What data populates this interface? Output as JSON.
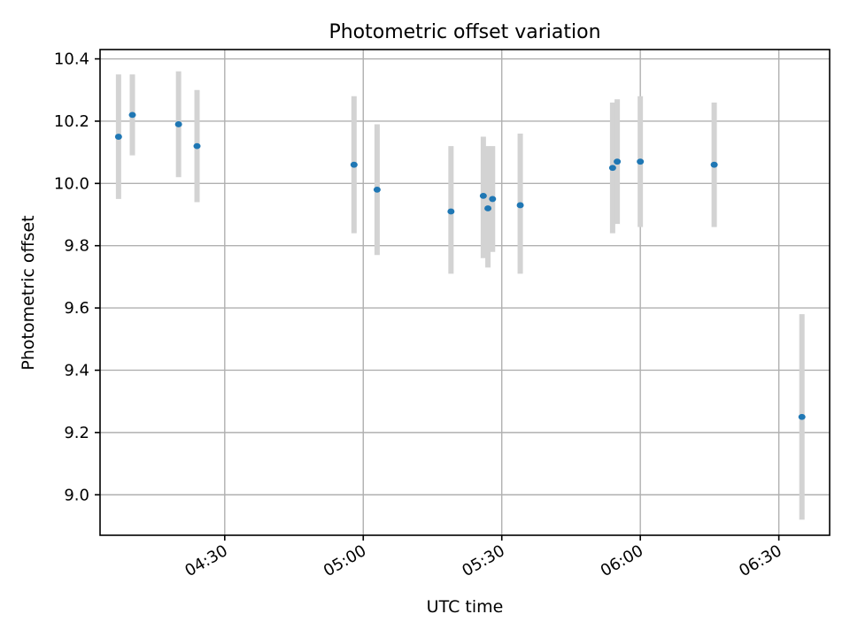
{
  "chart_data": {
    "type": "scatter",
    "title": "Photometric offset variation",
    "xlabel": "UTC time",
    "ylabel": "Photometric offset",
    "x_tick_labels": [
      "04:30",
      "05:00",
      "05:30",
      "06:00",
      "06:30"
    ],
    "x_tick_minutes": [
      270,
      300,
      330,
      360,
      390
    ],
    "y_ticks": [
      "9.0",
      "9.2",
      "9.4",
      "9.6",
      "9.8",
      "10.0",
      "10.2",
      "10.4"
    ],
    "x_range": [
      "04:03",
      "06:41"
    ],
    "ylim": [
      8.87,
      10.43
    ],
    "grid": true,
    "point_color": "#1f77b4",
    "errorbar_color": "#d3d3d3",
    "points": [
      {
        "x": "04:07",
        "y": 10.15,
        "ylow": 9.95,
        "yhigh": 10.35
      },
      {
        "x": "04:10",
        "y": 10.22,
        "ylow": 10.09,
        "yhigh": 10.35
      },
      {
        "x": "04:20",
        "y": 10.19,
        "ylow": 10.02,
        "yhigh": 10.36
      },
      {
        "x": "04:24",
        "y": 10.12,
        "ylow": 9.94,
        "yhigh": 10.3
      },
      {
        "x": "04:58",
        "y": 10.06,
        "ylow": 9.84,
        "yhigh": 10.28
      },
      {
        "x": "05:03",
        "y": 9.98,
        "ylow": 9.77,
        "yhigh": 10.19
      },
      {
        "x": "05:19",
        "y": 9.91,
        "ylow": 9.71,
        "yhigh": 10.12
      },
      {
        "x": "05:26",
        "y": 9.96,
        "ylow": 9.76,
        "yhigh": 10.15
      },
      {
        "x": "05:27",
        "y": 9.92,
        "ylow": 9.73,
        "yhigh": 10.12
      },
      {
        "x": "05:28",
        "y": 9.95,
        "ylow": 9.78,
        "yhigh": 10.12
      },
      {
        "x": "05:34",
        "y": 9.93,
        "ylow": 9.71,
        "yhigh": 10.16
      },
      {
        "x": "05:54",
        "y": 10.05,
        "ylow": 9.84,
        "yhigh": 10.26
      },
      {
        "x": "05:55",
        "y": 10.07,
        "ylow": 9.87,
        "yhigh": 10.27
      },
      {
        "x": "06:00",
        "y": 10.07,
        "ylow": 9.86,
        "yhigh": 10.28
      },
      {
        "x": "06:16",
        "y": 10.06,
        "ylow": 9.86,
        "yhigh": 10.26
      },
      {
        "x": "06:35",
        "y": 9.25,
        "ylow": 8.92,
        "yhigh": 9.58
      }
    ]
  }
}
